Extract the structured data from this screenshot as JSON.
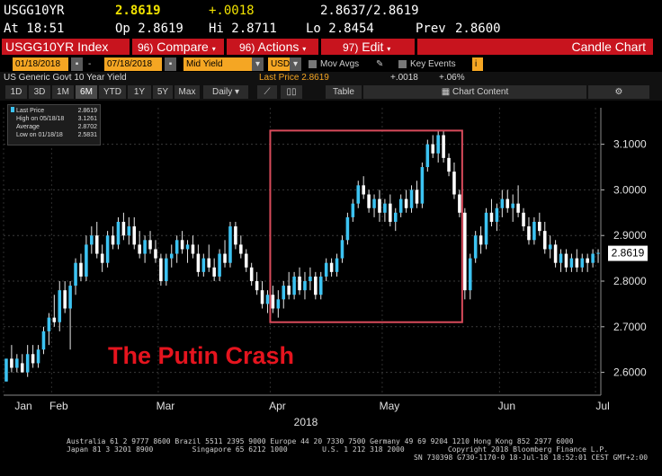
{
  "ticker": {
    "symbol": "USGG10YR",
    "last": "2.8619",
    "change": "+.0018",
    "bid_ask": "2.8637/2.8619",
    "at_label": "At 18:51",
    "open_label": "Op 2.8619",
    "high_label": "Hi 2.8711",
    "low_label": "Lo 2.8454",
    "prev_label": "Prev",
    "prev_value": "2.8600"
  },
  "toolbar": {
    "security": "USGG10YR Index",
    "compare_num": "96)",
    "compare": "Compare",
    "actions_num": "96)",
    "actions": "Actions",
    "edit_num": "97)",
    "edit": "Edit",
    "chart_type": "Candle Chart"
  },
  "fields": {
    "start_date": "01/18/2018",
    "end_date": "07/18/2018",
    "field": "Mid Yield",
    "currency": "USD",
    "mov_avgs": "Mov Avgs",
    "key_events": "Key Events"
  },
  "range": {
    "security_name": "US Generic Govt 10 Year Yield",
    "last_price_label": "Last Price 2.8619",
    "change": "+.0018",
    "change_pct": "+.06%",
    "buttons": [
      "1D",
      "3D",
      "1M",
      "6M",
      "YTD",
      "1Y",
      "5Y",
      "Max"
    ],
    "active": "6M",
    "period": "Daily",
    "table": "Table",
    "chart_content": "Chart Content"
  },
  "legend": {
    "last_price": "Last Price",
    "last_price_val": "2.8619",
    "high": "High on 05/18/18",
    "high_val": "3.1261",
    "average": "Average",
    "average_val": "2.8702",
    "low": "Low on 01/18/18",
    "low_val": "2.5831"
  },
  "annotation": "The Putin Crash",
  "current_price_tag": "2.8619",
  "chart_data": {
    "type": "candlestick",
    "ylim": [
      2.55,
      3.18
    ],
    "yticks": [
      2.6,
      2.7,
      2.8,
      2.9,
      3.0,
      3.1
    ],
    "ytick_labels": [
      "2.6000",
      "2.7000",
      "2.8000",
      "2.9000",
      "3.0000",
      "3.1000"
    ],
    "xtick_labels": [
      "Jan",
      "Feb",
      "Mar",
      "Apr",
      "May",
      "Jun",
      "Jul"
    ],
    "year_label": "2018",
    "up_color": "#3cc3f2",
    "down_color": "#ffffff",
    "highlight_box_color": "#d94b5b",
    "highlight_range": [
      "2018-03-26",
      "2018-05-21"
    ],
    "highlight_ylim": [
      2.71,
      3.13
    ],
    "candles": [
      [
        2.58,
        2.63,
        2.58,
        2.63
      ],
      [
        2.63,
        2.66,
        2.6,
        2.61
      ],
      [
        2.61,
        2.64,
        2.6,
        2.63
      ],
      [
        2.62,
        2.64,
        2.6,
        2.6
      ],
      [
        2.6,
        2.66,
        2.59,
        2.64
      ],
      [
        2.64,
        2.66,
        2.61,
        2.62
      ],
      [
        2.62,
        2.66,
        2.61,
        2.65
      ],
      [
        2.65,
        2.7,
        2.64,
        2.69
      ],
      [
        2.69,
        2.73,
        2.66,
        2.72
      ],
      [
        2.72,
        2.77,
        2.7,
        2.71
      ],
      [
        2.71,
        2.8,
        2.69,
        2.78
      ],
      [
        2.78,
        2.8,
        2.73,
        2.74
      ],
      [
        2.74,
        2.8,
        2.65,
        2.79
      ],
      [
        2.79,
        2.85,
        2.77,
        2.84
      ],
      [
        2.84,
        2.86,
        2.8,
        2.81
      ],
      [
        2.81,
        2.9,
        2.8,
        2.88
      ],
      [
        2.88,
        2.92,
        2.86,
        2.9
      ],
      [
        2.9,
        2.93,
        2.85,
        2.86
      ],
      [
        2.86,
        2.88,
        2.82,
        2.84
      ],
      [
        2.84,
        2.91,
        2.83,
        2.9
      ],
      [
        2.9,
        2.92,
        2.87,
        2.88
      ],
      [
        2.88,
        2.94,
        2.87,
        2.93
      ],
      [
        2.93,
        2.95,
        2.89,
        2.9
      ],
      [
        2.9,
        2.94,
        2.88,
        2.92
      ],
      [
        2.92,
        2.94,
        2.87,
        2.88
      ],
      [
        2.88,
        2.91,
        2.85,
        2.86
      ],
      [
        2.86,
        2.9,
        2.84,
        2.89
      ],
      [
        2.89,
        2.91,
        2.86,
        2.87
      ],
      [
        2.87,
        2.89,
        2.84,
        2.85
      ],
      [
        2.85,
        2.86,
        2.79,
        2.8
      ],
      [
        2.8,
        2.86,
        2.79,
        2.85
      ],
      [
        2.85,
        2.88,
        2.83,
        2.86
      ],
      [
        2.86,
        2.9,
        2.84,
        2.89
      ],
      [
        2.89,
        2.91,
        2.86,
        2.87
      ],
      [
        2.87,
        2.89,
        2.84,
        2.88
      ],
      [
        2.88,
        2.9,
        2.85,
        2.86
      ],
      [
        2.86,
        2.88,
        2.81,
        2.82
      ],
      [
        2.82,
        2.86,
        2.81,
        2.85
      ],
      [
        2.85,
        2.88,
        2.82,
        2.83
      ],
      [
        2.83,
        2.85,
        2.8,
        2.81
      ],
      [
        2.81,
        2.87,
        2.8,
        2.86
      ],
      [
        2.86,
        2.89,
        2.83,
        2.84
      ],
      [
        2.84,
        2.93,
        2.83,
        2.92
      ],
      [
        2.92,
        2.93,
        2.87,
        2.88
      ],
      [
        2.88,
        2.9,
        2.85,
        2.86
      ],
      [
        2.86,
        2.87,
        2.82,
        2.83
      ],
      [
        2.83,
        2.84,
        2.79,
        2.8
      ],
      [
        2.8,
        2.82,
        2.77,
        2.78
      ],
      [
        2.78,
        2.8,
        2.74,
        2.75
      ],
      [
        2.75,
        2.78,
        2.73,
        2.77
      ],
      [
        2.77,
        2.79,
        2.73,
        2.74
      ],
      [
        2.74,
        2.78,
        2.72,
        2.76
      ],
      [
        2.76,
        2.8,
        2.74,
        2.79
      ],
      [
        2.79,
        2.82,
        2.76,
        2.77
      ],
      [
        2.77,
        2.82,
        2.76,
        2.81
      ],
      [
        2.81,
        2.83,
        2.77,
        2.78
      ],
      [
        2.78,
        2.82,
        2.76,
        2.8
      ],
      [
        2.8,
        2.83,
        2.78,
        2.81
      ],
      [
        2.81,
        2.82,
        2.76,
        2.77
      ],
      [
        2.77,
        2.82,
        2.76,
        2.81
      ],
      [
        2.81,
        2.85,
        2.8,
        2.84
      ],
      [
        2.84,
        2.85,
        2.81,
        2.82
      ],
      [
        2.82,
        2.86,
        2.81,
        2.85
      ],
      [
        2.85,
        2.9,
        2.84,
        2.89
      ],
      [
        2.89,
        2.95,
        2.88,
        2.94
      ],
      [
        2.94,
        2.98,
        2.93,
        2.97
      ],
      [
        2.97,
        3.02,
        2.96,
        3.01
      ],
      [
        3.01,
        3.03,
        2.98,
        2.99
      ],
      [
        2.99,
        3.0,
        2.95,
        2.96
      ],
      [
        2.96,
        2.99,
        2.94,
        2.98
      ],
      [
        2.98,
        3.0,
        2.93,
        2.95
      ],
      [
        2.95,
        2.98,
        2.93,
        2.97
      ],
      [
        2.97,
        2.99,
        2.92,
        2.93
      ],
      [
        2.93,
        2.96,
        2.91,
        2.95
      ],
      [
        2.95,
        2.99,
        2.94,
        2.98
      ],
      [
        2.98,
        3.0,
        2.95,
        2.96
      ],
      [
        2.96,
        3.01,
        2.95,
        3.0
      ],
      [
        3.0,
        3.02,
        2.96,
        2.97
      ],
      [
        2.97,
        3.06,
        2.96,
        3.05
      ],
      [
        3.05,
        3.11,
        3.04,
        3.1
      ],
      [
        3.1,
        3.12,
        3.07,
        3.08
      ],
      [
        3.08,
        3.13,
        3.06,
        3.12
      ],
      [
        3.12,
        3.13,
        3.06,
        3.07
      ],
      [
        3.07,
        3.08,
        3.03,
        3.04
      ],
      [
        3.04,
        3.06,
        2.98,
        2.99
      ],
      [
        2.99,
        3.0,
        2.94,
        2.95
      ],
      [
        2.95,
        2.96,
        2.76,
        2.78
      ],
      [
        2.78,
        2.86,
        2.76,
        2.85
      ],
      [
        2.85,
        2.91,
        2.84,
        2.9
      ],
      [
        2.9,
        2.92,
        2.86,
        2.88
      ],
      [
        2.88,
        2.96,
        2.87,
        2.95
      ],
      [
        2.95,
        2.98,
        2.92,
        2.93
      ],
      [
        2.93,
        2.97,
        2.91,
        2.96
      ],
      [
        2.96,
        3.0,
        2.94,
        2.98
      ],
      [
        2.98,
        3.0,
        2.95,
        2.96
      ],
      [
        2.96,
        2.99,
        2.93,
        2.97
      ],
      [
        2.97,
        3.01,
        2.94,
        2.95
      ],
      [
        2.95,
        2.96,
        2.91,
        2.92
      ],
      [
        2.92,
        2.94,
        2.88,
        2.89
      ],
      [
        2.89,
        2.94,
        2.88,
        2.93
      ],
      [
        2.93,
        2.95,
        2.9,
        2.91
      ],
      [
        2.91,
        2.93,
        2.86,
        2.87
      ],
      [
        2.87,
        2.9,
        2.85,
        2.88
      ],
      [
        2.88,
        2.89,
        2.83,
        2.84
      ],
      [
        2.84,
        2.87,
        2.82,
        2.86
      ],
      [
        2.86,
        2.87,
        2.82,
        2.83
      ],
      [
        2.83,
        2.86,
        2.82,
        2.85
      ],
      [
        2.85,
        2.87,
        2.82,
        2.83
      ],
      [
        2.83,
        2.86,
        2.82,
        2.85
      ],
      [
        2.85,
        2.86,
        2.82,
        2.84
      ],
      [
        2.84,
        2.87,
        2.83,
        2.86
      ],
      [
        2.86,
        2.87,
        2.84,
        2.8619
      ]
    ]
  }
}
